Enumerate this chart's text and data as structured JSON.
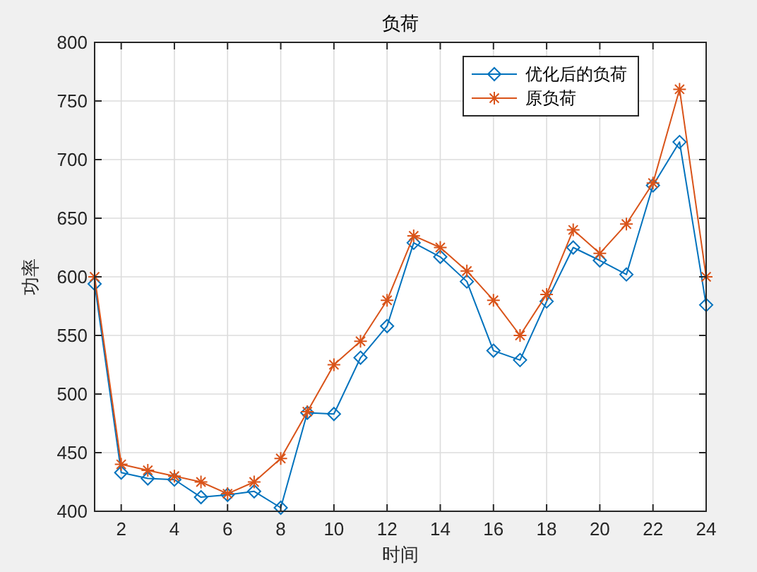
{
  "chart_data": {
    "type": "line",
    "title": "负荷",
    "xlabel": "时间",
    "ylabel": "功率",
    "x": [
      1,
      2,
      3,
      4,
      5,
      6,
      7,
      8,
      9,
      10,
      11,
      12,
      13,
      14,
      15,
      16,
      17,
      18,
      19,
      20,
      21,
      22,
      23,
      24
    ],
    "series": [
      {
        "name": "优化后的负荷",
        "color": "#0072bd",
        "marker": "diamond",
        "values": [
          594,
          433,
          428,
          427,
          412,
          414,
          417,
          403,
          484,
          483,
          531,
          558,
          629,
          617,
          596,
          537,
          529,
          579,
          625,
          614,
          602,
          678,
          715,
          576
        ]
      },
      {
        "name": "原负荷",
        "color": "#d95319",
        "marker": "cross",
        "values": [
          600,
          440,
          435,
          430,
          425,
          415,
          425,
          445,
          485,
          525,
          545,
          580,
          635,
          625,
          605,
          580,
          550,
          585,
          640,
          620,
          645,
          680,
          760,
          600
        ]
      }
    ],
    "xlim": [
      1,
      24
    ],
    "xticks": [
      2,
      4,
      6,
      8,
      10,
      12,
      14,
      16,
      18,
      20,
      22,
      24
    ],
    "ylim": [
      400,
      800
    ],
    "yticks": [
      400,
      450,
      500,
      550,
      600,
      650,
      700,
      750,
      800
    ],
    "grid": true,
    "legend": "top right",
    "line_style": "solid"
  }
}
